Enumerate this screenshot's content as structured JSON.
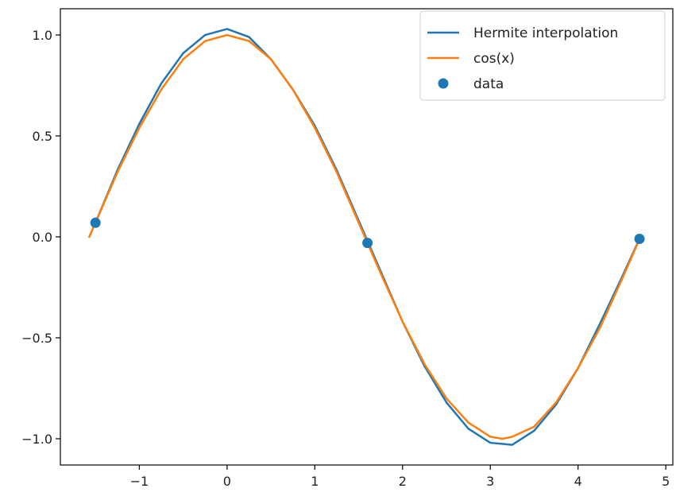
{
  "chart_data": {
    "type": "line",
    "title": "",
    "xlabel": "",
    "ylabel": "",
    "xlim": [
      -1.9,
      5.08
    ],
    "ylim": [
      -1.13,
      1.13
    ],
    "x_ticks": [
      -1,
      0,
      1,
      2,
      3,
      4,
      5
    ],
    "x_tick_labels": [
      "−1",
      "0",
      "1",
      "2",
      "3",
      "4",
      "5"
    ],
    "y_ticks": [
      -1.0,
      -0.5,
      0.0,
      0.5,
      1.0
    ],
    "y_tick_labels": [
      "−1.0",
      "−0.5",
      "0.0",
      "0.5",
      "1.0"
    ],
    "grid": false,
    "legend_position": "top-right",
    "series": [
      {
        "name": "Hermite interpolation",
        "kind": "line",
        "color": "#1f77b4",
        "x": [
          -1.5,
          -1.25,
          -1.0,
          -0.75,
          -0.5,
          -0.25,
          0.0,
          0.25,
          0.5,
          0.75,
          1.0,
          1.25,
          1.5,
          1.75,
          2.0,
          2.25,
          2.5,
          2.75,
          3.0,
          3.25,
          3.5,
          3.75,
          4.0,
          4.25,
          4.5,
          4.7
        ],
        "y": [
          0.07,
          0.33,
          0.56,
          0.76,
          0.91,
          1.0,
          1.03,
          0.99,
          0.88,
          0.73,
          0.55,
          0.33,
          0.08,
          -0.17,
          -0.42,
          -0.64,
          -0.82,
          -0.95,
          -1.02,
          -1.03,
          -0.96,
          -0.83,
          -0.65,
          -0.43,
          -0.2,
          -0.01
        ]
      },
      {
        "name": "cos(x)",
        "kind": "line",
        "color": "#ff7f0e",
        "x": [
          -1.571,
          -1.25,
          -1.0,
          -0.75,
          -0.5,
          -0.25,
          0.0,
          0.25,
          0.5,
          0.75,
          1.0,
          1.25,
          1.5,
          1.75,
          2.0,
          2.25,
          2.5,
          2.75,
          3.0,
          3.14,
          3.25,
          3.5,
          3.75,
          4.0,
          4.25,
          4.5,
          4.712
        ],
        "y": [
          0.0,
          0.32,
          0.54,
          0.73,
          0.88,
          0.97,
          1.0,
          0.97,
          0.88,
          0.73,
          0.54,
          0.32,
          0.07,
          -0.18,
          -0.42,
          -0.63,
          -0.8,
          -0.92,
          -0.99,
          -1.0,
          -0.99,
          -0.94,
          -0.82,
          -0.65,
          -0.45,
          -0.21,
          0.0
        ]
      },
      {
        "name": "data",
        "kind": "scatter",
        "color": "#1f77b4",
        "x": [
          -1.5,
          1.6,
          4.7
        ],
        "y": [
          0.07,
          -0.03,
          -0.01
        ]
      }
    ]
  }
}
